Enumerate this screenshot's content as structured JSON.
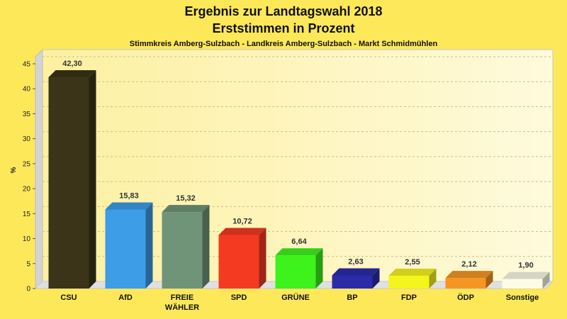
{
  "chart_data": {
    "type": "bar",
    "title": "Ergebnis zur Landtagswahl 2018",
    "title2": "Erststimmen in Prozent",
    "subtitle": "Stimmkreis Amberg-Sulzbach - Landkreis Amberg-Sulzbach - Markt Schmidmühlen",
    "xlabel": "",
    "ylabel": "%",
    "ylim": [
      0,
      45
    ],
    "yticks": [
      0,
      5,
      10,
      15,
      20,
      25,
      30,
      35,
      40,
      45
    ],
    "grid": true,
    "categories": [
      "CSU",
      "AfD",
      "FREIE WÄHLER",
      "SPD",
      "GRÜNE",
      "BP",
      "FDP",
      "ÖDP",
      "Sonstige"
    ],
    "category_lines": [
      [
        "CSU"
      ],
      [
        "AfD"
      ],
      [
        "FREIE",
        "WÄHLER"
      ],
      [
        "SPD"
      ],
      [
        "GRÜNE"
      ],
      [
        "BP"
      ],
      [
        "FDP"
      ],
      [
        "ÖDP"
      ],
      [
        "Sonstige"
      ]
    ],
    "values": [
      42.3,
      15.83,
      15.32,
      10.72,
      6.64,
      2.63,
      2.55,
      2.12,
      1.9
    ],
    "value_labels": [
      "42,30",
      "15,83",
      "15,32",
      "10,72",
      "6,64",
      "2,63",
      "2,55",
      "2,12",
      "1,90"
    ],
    "colors": [
      "#3b3418",
      "#3d9de6",
      "#6f9478",
      "#f53a22",
      "#3ef21c",
      "#2b2ba8",
      "#f5f51e",
      "#f59624",
      "#fbfbe6"
    ],
    "background_color": "#fde85a"
  }
}
